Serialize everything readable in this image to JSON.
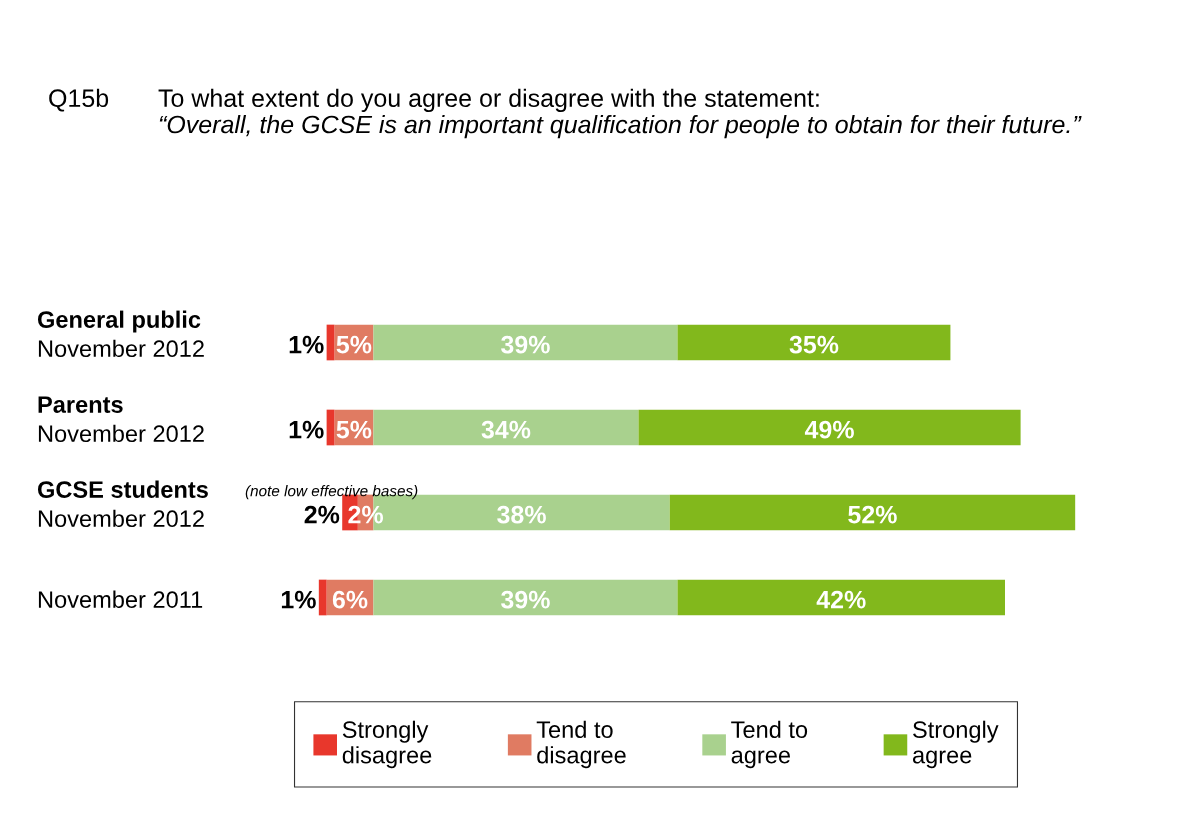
{
  "chart_data": {
    "type": "bar",
    "orientation": "horizontal",
    "stacked": true,
    "title": "Q15b",
    "subtitle": "To what extent do you agree or disagree with the statement:",
    "annotations": [
      "“Overall, the GCSE is an important qualification for people to obtain for their future.”",
      "(note low effective bases)",
      {
        "text": "5%",
        "x": -5,
        "y": "General public\nNovember 2012"
      },
      {
        "text": "1%",
        "x": -6,
        "y": "General public\nNovember 2012"
      },
      {
        "text": "5%",
        "x": -5,
        "y": "Parents\nNovember 2012"
      },
      {
        "text": "1%",
        "x": -6,
        "y": "Parents\nNovember 2012"
      },
      {
        "text": "2%",
        "x": -2,
        "y": "GCSE students\nNovember 2012"
      },
      {
        "text": "2%",
        "x": -4,
        "y": "GCSE students\nNovember 2012"
      },
      {
        "text": "6%",
        "x": -6,
        "y": "November 2011"
      },
      {
        "text": "1%",
        "x": -7,
        "y": "November 2011"
      }
    ],
    "categories": [
      "General public\nNovember 2012",
      "Parents\nNovember 2012",
      "GCSE students\nNovember 2012",
      "November 2011"
    ],
    "tick_labels": false,
    "legend": "bottom",
    "series": [
      {
        "name": "Tend to\ndisagree",
        "color": "#e07b62",
        "values": [
          -5,
          -5,
          -2,
          -6
        ]
      },
      {
        "name": "Strongly\ndisagree",
        "color": "#e8372c",
        "values": [
          -1,
          -1,
          -2,
          -1
        ]
      },
      {
        "name": "Tend to\nagree",
        "color": "#a9d18e",
        "values": [
          39,
          34,
          38,
          39
        ],
        "value_labels": [
          "39%",
          "34%",
          "38%",
          "39%"
        ]
      },
      {
        "name": "Strongly\nagree",
        "color": "#82b81c",
        "values": [
          35,
          49,
          52,
          42
        ],
        "value_labels": [
          "35%",
          "49%",
          "52%",
          "42%"
        ]
      }
    ]
  }
}
